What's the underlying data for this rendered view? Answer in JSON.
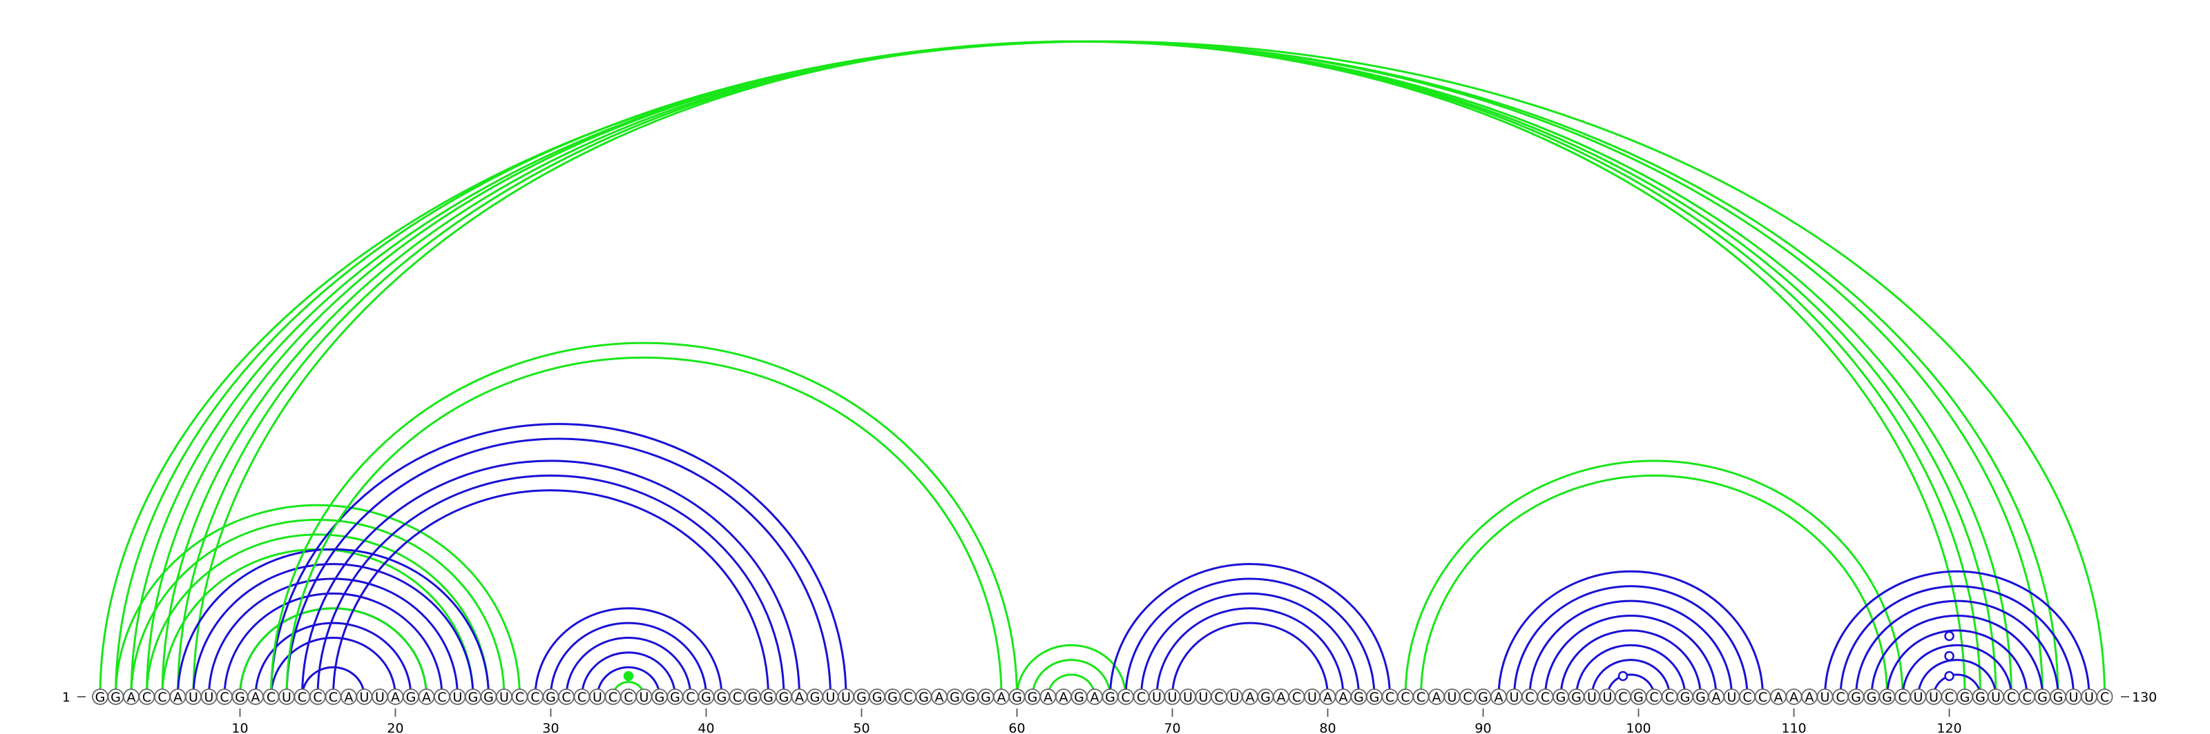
{
  "sequence": {
    "start_label": "1",
    "end_label": "130",
    "letters": "GGACCAUUCGACUCCCAUUAGACUGGUCCGCCUCCUGGCGGCGGGAGUUGGGCGAGGGAGGAAGAGCCUUUUCUAGACUAAGGCCCAUCGAUCCGGUUCGCCGGAUCCAAAUCGGGCUUCGGUCCGGUUC",
    "ticks": [
      {
        "pos": 10,
        "label": "10"
      },
      {
        "pos": 20,
        "label": "20"
      },
      {
        "pos": 30,
        "label": "30"
      },
      {
        "pos": 40,
        "label": "40"
      },
      {
        "pos": 50,
        "label": "50"
      },
      {
        "pos": 60,
        "label": "60"
      },
      {
        "pos": 70,
        "label": "70"
      },
      {
        "pos": 80,
        "label": "80"
      },
      {
        "pos": 90,
        "label": "90"
      },
      {
        "pos": 100,
        "label": "100"
      },
      {
        "pos": 110,
        "label": "110"
      },
      {
        "pos": 120,
        "label": "120"
      }
    ]
  },
  "colors": {
    "blue": "#1a0fd6",
    "green": "#19e619",
    "circle_stroke": "#666666"
  },
  "arc_groups": [
    {
      "name": "long-range-green-helix",
      "color": "green",
      "side": "top",
      "pairs": [
        [
          1,
          130
        ],
        [
          2,
          127
        ],
        [
          3,
          126
        ],
        [
          4,
          124
        ],
        [
          5,
          123
        ],
        [
          6,
          122
        ],
        [
          7,
          121
        ]
      ]
    },
    {
      "name": "left-green-helix",
      "color": "green",
      "side": "top",
      "pairs": [
        [
          2,
          28
        ],
        [
          3,
          27
        ],
        [
          4,
          26
        ],
        [
          5,
          25
        ]
      ]
    },
    {
      "name": "left-blue-helix",
      "color": "blue",
      "side": "top",
      "pairs": [
        [
          6,
          26
        ],
        [
          7,
          25
        ],
        [
          8,
          24
        ],
        [
          9,
          23
        ],
        [
          10,
          22
        ],
        [
          11,
          21
        ]
      ]
    },
    {
      "name": "inner-green-arc",
      "color": "green",
      "side": "top",
      "pairs": [
        [
          10,
          22
        ]
      ]
    },
    {
      "name": "inner-blue-arcs",
      "color": "blue",
      "side": "top",
      "pairs": [
        [
          12,
          20
        ],
        [
          14,
          18
        ]
      ]
    },
    {
      "name": "crossing-blue-helix",
      "color": "blue",
      "side": "top",
      "pairs": [
        [
          12,
          49
        ],
        [
          13,
          48
        ],
        [
          14,
          46
        ],
        [
          15,
          45
        ],
        [
          16,
          44
        ]
      ]
    },
    {
      "name": "green-pseudoknot",
      "color": "green",
      "side": "top",
      "pairs": [
        [
          12,
          60
        ],
        [
          13,
          59
        ]
      ]
    },
    {
      "name": "hairpin-blue-helix",
      "color": "blue",
      "side": "top",
      "pairs": [
        [
          29,
          41
        ],
        [
          30,
          40
        ],
        [
          31,
          39
        ],
        [
          32,
          38
        ],
        [
          33,
          37
        ]
      ]
    },
    {
      "name": "hairpin-green-loop",
      "color": "green",
      "side": "top",
      "pairs": [
        [
          34,
          36
        ]
      ]
    },
    {
      "name": "middle-green-arcs",
      "color": "green",
      "side": "top",
      "pairs": [
        [
          60,
          67
        ],
        [
          61,
          66
        ],
        [
          62,
          65
        ]
      ]
    },
    {
      "name": "middle-blue-helix",
      "color": "blue",
      "side": "top",
      "pairs": [
        [
          66,
          84
        ],
        [
          67,
          83
        ],
        [
          68,
          82
        ],
        [
          69,
          81
        ],
        [
          70,
          80
        ]
      ]
    },
    {
      "name": "right-green-helix",
      "color": "green",
      "side": "top",
      "pairs": [
        [
          85,
          117
        ],
        [
          86,
          116
        ]
      ]
    },
    {
      "name": "right-blue-helix",
      "color": "blue",
      "side": "top",
      "pairs": [
        [
          91,
          108
        ],
        [
          92,
          107
        ],
        [
          93,
          106
        ],
        [
          94,
          105
        ],
        [
          95,
          104
        ],
        [
          96,
          103
        ],
        [
          97,
          102
        ],
        [
          98,
          101
        ]
      ]
    },
    {
      "name": "far-right-blue-helix",
      "color": "blue",
      "side": "top",
      "pairs": [
        [
          112,
          129
        ],
        [
          113,
          128
        ],
        [
          114,
          127
        ],
        [
          115,
          126
        ],
        [
          116,
          125
        ],
        [
          117,
          124
        ],
        [
          118,
          123
        ],
        [
          119,
          122
        ]
      ]
    }
  ],
  "markers": [
    {
      "pos": 35,
      "color": "green",
      "filled": true
    },
    {
      "pos": 99,
      "color": "blue",
      "filled": false
    },
    {
      "pos": 120,
      "color": "blue",
      "filled": false,
      "level": 1
    },
    {
      "pos": 120,
      "color": "blue",
      "filled": false,
      "level": 2
    },
    {
      "pos": 120,
      "color": "blue",
      "filled": false,
      "level": 3
    }
  ]
}
